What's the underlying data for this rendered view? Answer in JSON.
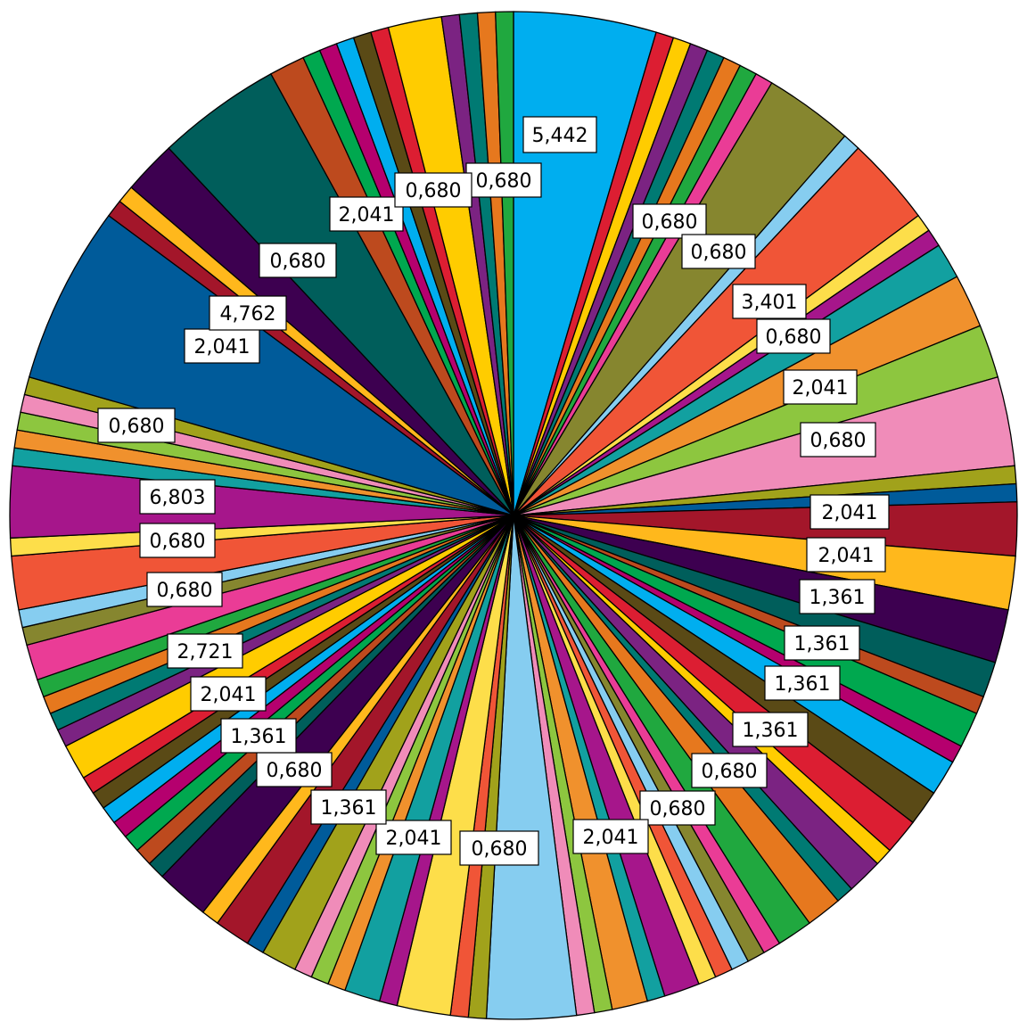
{
  "chart_data": {
    "type": "pie",
    "title": "",
    "start_angle_deg": 0,
    "direction": "clockwise",
    "values": [
      5.442,
      0.68,
      0.68,
      0.68,
      0.68,
      0.68,
      0.68,
      0.68,
      3.401,
      0.68,
      3.401,
      0.68,
      0.68,
      1.361,
      2.041,
      2.041,
      3.401,
      0.68,
      0.68,
      2.041,
      2.041,
      2.041,
      1.361,
      0.68,
      1.361,
      0.68,
      1.361,
      1.361,
      1.361,
      0.68,
      1.361,
      0.68,
      1.361,
      1.361,
      0.68,
      0.68,
      0.68,
      0.68,
      0.68,
      1.361,
      0.68,
      1.361,
      0.68,
      0.68,
      3.401,
      0.68,
      0.68,
      2.041,
      0.68,
      1.361,
      0.68,
      0.68,
      0.68,
      1.361,
      0.68,
      1.361,
      0.68,
      2.041,
      0.68,
      0.68,
      0.68,
      0.68,
      0.68,
      0.68,
      0.68,
      1.361,
      0.68,
      0.68,
      0.68,
      0.68,
      1.361,
      0.68,
      0.68,
      2.041,
      0.68,
      2.721,
      0.68,
      0.68,
      0.68,
      0.68,
      0.68,
      6.803,
      0.68,
      0.68,
      2.041,
      4.762,
      1.361,
      0.68,
      0.68,
      0.68,
      0.68,
      0.68,
      2.041,
      0.68,
      0.68,
      0.68,
      0.68
    ],
    "colors": [
      "#00aeef",
      "#dc1e32",
      "#ffcc00",
      "#7b2382",
      "#007a73",
      "#e6781e",
      "#20a83f",
      "#ea3c96",
      "#86862f",
      "#86cdf0",
      "#f05537",
      "#fdde4a",
      "#a6168b",
      "#12a0a0",
      "#f0912d",
      "#8dc63f",
      "#f08cb9",
      "#a1a21b",
      "#005b9a",
      "#a3162a",
      "#ffb81c",
      "#3d0050",
      "#005e5b",
      "#bd4a1e",
      "#00a84f",
      "#b5006e",
      "#00aeef",
      "#5a4a16",
      "#dc1e32",
      "#ffcc00",
      "#7b2382",
      "#007a73",
      "#e6781e",
      "#20a83f",
      "#ea3c96",
      "#86862f",
      "#86cdf0",
      "#f05537",
      "#fdde4a",
      "#a6168b",
      "#12a0a0",
      "#f0912d",
      "#8dc63f",
      "#f08cb9",
      "#86cdf0",
      "#a1a21b",
      "#f05537",
      "#fdde4a",
      "#a6168b",
      "#12a0a0",
      "#f0912d",
      "#8dc63f",
      "#f08cb9",
      "#a1a21b",
      "#005b9a",
      "#a3162a",
      "#ffb81c",
      "#3d0050",
      "#005e5b",
      "#bd4a1e",
      "#00a84f",
      "#b5006e",
      "#00aeef",
      "#5a4a16",
      "#dc1e32",
      "#ffcc00",
      "#7b2382",
      "#007a73",
      "#e6781e",
      "#20a83f",
      "#ea3c96",
      "#86862f",
      "#86cdf0",
      "#f05537",
      "#fdde4a",
      "#a6168b",
      "#12a0a0",
      "#f0912d",
      "#8dc63f",
      "#f08cb9",
      "#a1a21b",
      "#005b9a",
      "#a3162a",
      "#ffb81c",
      "#3d0050",
      "#005e5b",
      "#bd4a1e",
      "#00a84f",
      "#b5006e",
      "#00aeef",
      "#5a4a16",
      "#dc1e32",
      "#ffcc00",
      "#7b2382",
      "#007a73",
      "#e6781e",
      "#20a83f",
      "#ea3c96"
    ],
    "data_labels": [
      {
        "text": "5,442"
      },
      {
        "text": "0,680"
      },
      {
        "text": "0,680"
      },
      {
        "text": "0,680"
      },
      {
        "text": "3,401"
      },
      {
        "text": "0,680"
      },
      {
        "text": "2,041"
      },
      {
        "text": "0,680"
      },
      {
        "text": "2,041"
      },
      {
        "text": "2,041"
      },
      {
        "text": "1,361"
      },
      {
        "text": "1,361"
      },
      {
        "text": "1,361"
      },
      {
        "text": "1,361"
      },
      {
        "text": "0,680"
      },
      {
        "text": "0,680"
      },
      {
        "text": "2,041"
      },
      {
        "text": "0,680"
      },
      {
        "text": "2,041"
      },
      {
        "text": "1,361"
      },
      {
        "text": "0,680"
      },
      {
        "text": "1,361"
      },
      {
        "text": "2,041"
      },
      {
        "text": "2,721"
      },
      {
        "text": "0,680"
      },
      {
        "text": "0,680"
      },
      {
        "text": "6,803"
      },
      {
        "text": "0,680"
      },
      {
        "text": "2,041"
      },
      {
        "text": "4,762"
      },
      {
        "text": "0,680"
      },
      {
        "text": "2,041"
      },
      {
        "text": "0,680"
      }
    ]
  }
}
